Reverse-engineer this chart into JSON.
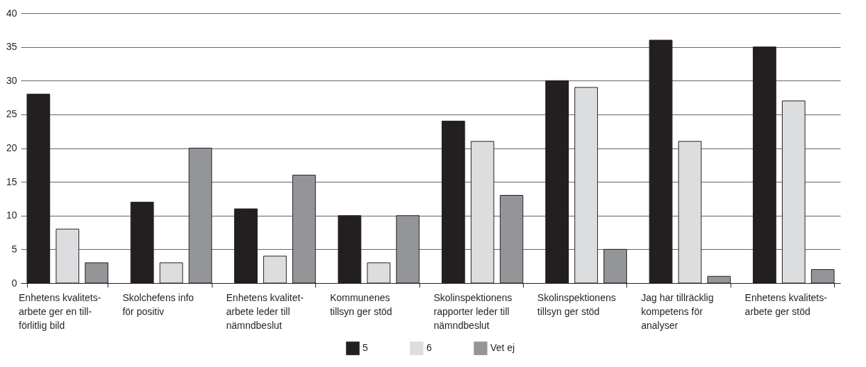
{
  "chart_data": {
    "type": "bar",
    "categories": [
      "Enhetens kvalitets-\narbete ger en till-\nförlitlig bild",
      "Skolchefens info\nför positiv",
      "Enhetens kvalitet-\narbete leder till\nnämndbeslut",
      "Kommunenes\ntillsyn ger stöd",
      "Skolinspektionens\nrapporter leder till\nnämndbeslut",
      "Skolinspektionens\ntillsyn ger stöd",
      "Jag har tillräcklig\nkompetens för\nanalyser",
      "Enhetens kvalitets-\narbete ger stöd"
    ],
    "series": [
      {
        "name": "5",
        "color": "#231f20",
        "values": [
          28,
          12,
          11,
          10,
          24,
          30,
          36,
          35
        ]
      },
      {
        "name": "6",
        "color": "#dcdddf",
        "values": [
          8,
          3,
          4,
          3,
          21,
          29,
          21,
          27
        ]
      },
      {
        "name": "Vet ej",
        "color": "#939598",
        "values": [
          3,
          20,
          16,
          10,
          13,
          5,
          1,
          2
        ]
      }
    ],
    "ylim": [
      0,
      40
    ],
    "yticks": [
      0,
      5,
      10,
      15,
      20,
      25,
      30,
      35,
      40
    ],
    "grid": "y",
    "legend": "bottom"
  }
}
